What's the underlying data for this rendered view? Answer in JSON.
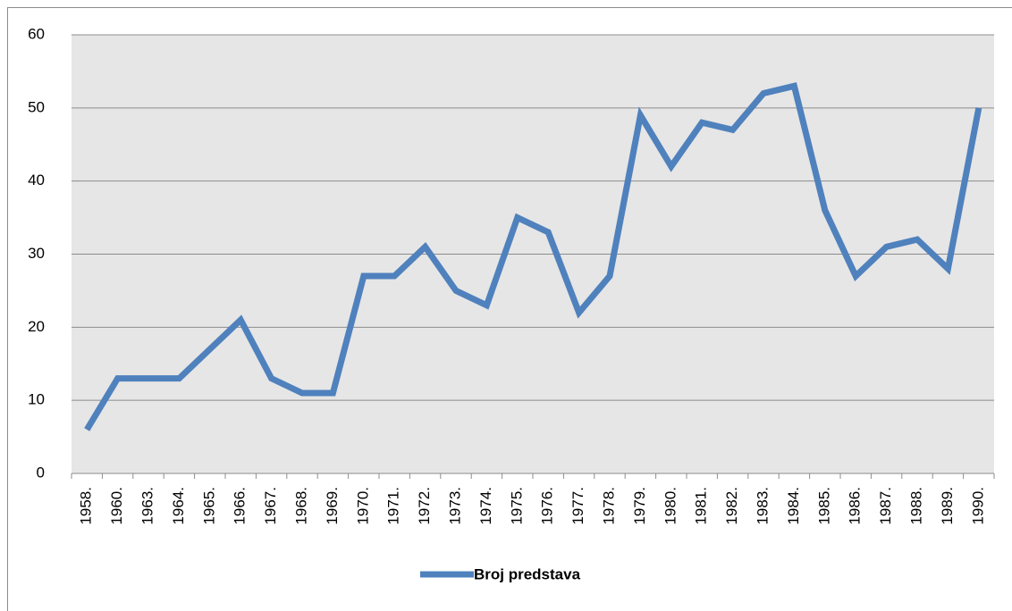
{
  "chart_data": {
    "type": "line",
    "categories": [
      "1958.",
      "1960.",
      "1963.",
      "1964.",
      "1965.",
      "1966.",
      "1967.",
      "1968.",
      "1969.",
      "1970.",
      "1971.",
      "1972.",
      "1973.",
      "1974.",
      "1975.",
      "1976.",
      "1977.",
      "1978.",
      "1979.",
      "1980.",
      "1981.",
      "1982.",
      "1983.",
      "1984.",
      "1985.",
      "1986.",
      "1987.",
      "1988.",
      "1989.",
      "1990."
    ],
    "series": [
      {
        "name": "Broj predstava",
        "color": "#4f81bd",
        "values": [
          6,
          13,
          13,
          13,
          17,
          21,
          13,
          11,
          11,
          27,
          27,
          31,
          25,
          23,
          35,
          33,
          22,
          27,
          49,
          42,
          48,
          47,
          52,
          53,
          36,
          27,
          31,
          32,
          28,
          50
        ]
      }
    ],
    "ylim": [
      0,
      60
    ],
    "yticks": [
      0,
      10,
      20,
      30,
      40,
      50,
      60
    ],
    "grid": true,
    "legend": "bottom"
  }
}
